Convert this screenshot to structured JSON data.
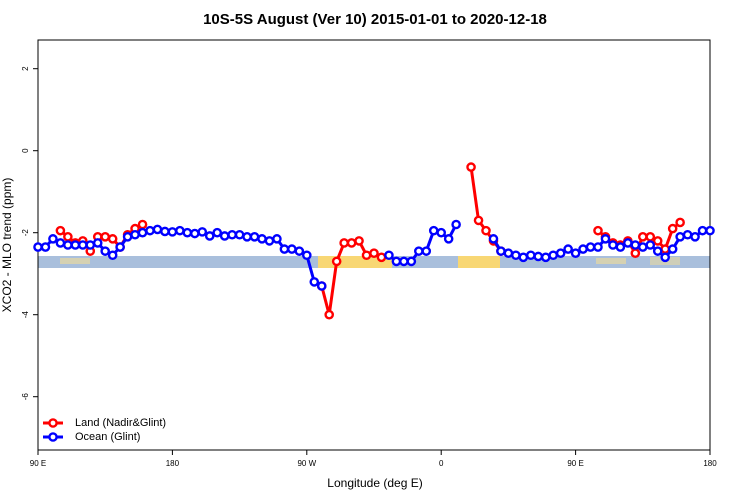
{
  "chart_data": {
    "type": "line",
    "title": "10S-5S August (Ver 10)   2015-01-01 to 2020-12-18",
    "x_label": "Longitude (deg E)",
    "y_label": "XCO2 - MLO trend (ppm)",
    "xlim": [
      90,
      540
    ],
    "ylim": [
      -7.3,
      2.7
    ],
    "xticks": [
      {
        "value": 90,
        "label": "90 E"
      },
      180,
      {
        "value": 270,
        "label": "90 W"
      },
      {
        "value": 360,
        "label": "0"
      },
      {
        "value": 450,
        "label": "90 E"
      },
      {
        "value": 540,
        "label": "180"
      }
    ],
    "yticks": [
      2,
      0,
      -2,
      -4,
      -6
    ],
    "legend": "bottom-left",
    "x": [
      90,
      95,
      100,
      105,
      110,
      115,
      120,
      125,
      130,
      135,
      140,
      145,
      150,
      155,
      160,
      165,
      170,
      175,
      180,
      185,
      190,
      195,
      200,
      205,
      210,
      215,
      220,
      225,
      230,
      235,
      240,
      245,
      250,
      255,
      260,
      265,
      270,
      275,
      280,
      285,
      290,
      295,
      300,
      305,
      310,
      315,
      320,
      325,
      330,
      335,
      340,
      345,
      350,
      355,
      360,
      365,
      370,
      375,
      380,
      385,
      390,
      395,
      400,
      405,
      410,
      415,
      420,
      425,
      430,
      435,
      440,
      445,
      450,
      455,
      460,
      465,
      470,
      475,
      480,
      485,
      490,
      495,
      500,
      505,
      510,
      515,
      520,
      525,
      530,
      535,
      540
    ],
    "series": [
      {
        "name": "Land (Nadir&Glint)",
        "color": "#ff0000",
        "values": [
          null,
          null,
          null,
          -1.95,
          -2.1,
          -2.25,
          -2.2,
          -2.45,
          -2.1,
          -2.1,
          -2.15,
          -2.35,
          -2.05,
          -1.9,
          -1.8,
          null,
          null,
          null,
          null,
          null,
          null,
          null,
          null,
          null,
          null,
          null,
          null,
          null,
          null,
          null,
          null,
          null,
          null,
          null,
          null,
          null,
          null,
          null,
          -3.3,
          -4.0,
          -2.7,
          -2.25,
          -2.25,
          -2.2,
          -2.55,
          -2.5,
          -2.6,
          null,
          null,
          null,
          null,
          null,
          null,
          null,
          null,
          null,
          null,
          null,
          -0.4,
          -1.7,
          -1.95,
          -2.2,
          -2.45,
          null,
          null,
          null,
          null,
          null,
          null,
          null,
          null,
          null,
          null,
          null,
          null,
          -1.95,
          -2.1,
          -2.25,
          -2.3,
          -2.2,
          -2.5,
          -2.1,
          -2.1,
          -2.2,
          -2.4,
          -1.9,
          -1.75,
          null,
          null,
          null,
          null
        ]
      },
      {
        "name": "Ocean (Glint)",
        "color": "#0000ff",
        "values": [
          -2.35,
          -2.35,
          -2.15,
          -2.25,
          -2.3,
          -2.3,
          -2.3,
          -2.3,
          -2.25,
          -2.45,
          -2.55,
          -2.35,
          -2.1,
          -2.05,
          -2.0,
          -1.95,
          -1.92,
          -1.97,
          -1.98,
          -1.95,
          -2.0,
          -2.02,
          -1.98,
          -2.08,
          -2.0,
          -2.08,
          -2.05,
          -2.05,
          -2.1,
          -2.1,
          -2.15,
          -2.2,
          -2.15,
          -2.4,
          -2.4,
          -2.45,
          -2.55,
          -3.2,
          -3.3,
          null,
          null,
          null,
          null,
          null,
          null,
          null,
          null,
          -2.55,
          -2.7,
          -2.7,
          -2.7,
          -2.45,
          -2.45,
          -1.95,
          -2.0,
          -2.15,
          -1.8,
          null,
          null,
          null,
          null,
          -2.15,
          -2.45,
          -2.5,
          -2.55,
          -2.6,
          -2.55,
          -2.58,
          -2.6,
          -2.55,
          -2.5,
          -2.4,
          -2.5,
          -2.4,
          -2.35,
          -2.35,
          -2.15,
          -2.3,
          -2.35,
          -2.25,
          -2.3,
          -2.35,
          -2.3,
          -2.45,
          -2.6,
          -2.4,
          -2.1,
          -2.05,
          -2.1,
          -1.95,
          -1.95
        ]
      }
    ]
  }
}
